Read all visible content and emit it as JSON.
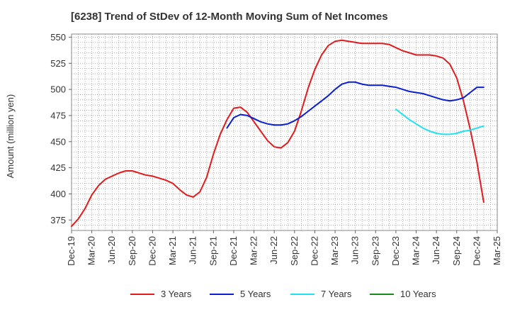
{
  "chart_data": {
    "type": "line",
    "title": "[6238]  Trend of StDev of 12-Month Moving Sum of Net Incomes",
    "ylabel": "Amount (million yen)",
    "xlabel": "",
    "ylim": [
      365,
      553
    ],
    "yticks": [
      375,
      400,
      425,
      450,
      475,
      500,
      525,
      550
    ],
    "x_tick_labels": [
      "Dec-19",
      "Mar-20",
      "Jun-20",
      "Sep-20",
      "Dec-20",
      "Mar-21",
      "Jun-21",
      "Sep-21",
      "Dec-21",
      "Mar-22",
      "Jun-22",
      "Sep-22",
      "Dec-22",
      "Mar-23",
      "Jun-23",
      "Sep-23",
      "Dec-23",
      "Mar-24",
      "Jun-24",
      "Sep-24",
      "Dec-24",
      "Mar-25"
    ],
    "x_range": [
      "2019-12",
      "2025-03"
    ],
    "grid": true,
    "legend_position": "bottom",
    "series": [
      {
        "name": "3 Years",
        "color": "#e31a1c",
        "points": [
          [
            "2019-12",
            369
          ],
          [
            "2020-01",
            376
          ],
          [
            "2020-02",
            386
          ],
          [
            "2020-03",
            399
          ],
          [
            "2020-04",
            408
          ],
          [
            "2020-05",
            414
          ],
          [
            "2020-06",
            417
          ],
          [
            "2020-07",
            420
          ],
          [
            "2020-08",
            422
          ],
          [
            "2020-09",
            422
          ],
          [
            "2020-10",
            420
          ],
          [
            "2020-11",
            418
          ],
          [
            "2020-12",
            417
          ],
          [
            "2021-01",
            415
          ],
          [
            "2021-02",
            413
          ],
          [
            "2021-03",
            410
          ],
          [
            "2021-04",
            404
          ],
          [
            "2021-05",
            399
          ],
          [
            "2021-06",
            397
          ],
          [
            "2021-07",
            402
          ],
          [
            "2021-08",
            416
          ],
          [
            "2021-09",
            438
          ],
          [
            "2021-10",
            457
          ],
          [
            "2021-11",
            471
          ],
          [
            "2021-12",
            482
          ],
          [
            "2022-01",
            483
          ],
          [
            "2022-02",
            478
          ],
          [
            "2022-03",
            469
          ],
          [
            "2022-04",
            460
          ],
          [
            "2022-05",
            451
          ],
          [
            "2022-06",
            445
          ],
          [
            "2022-07",
            444
          ],
          [
            "2022-08",
            449
          ],
          [
            "2022-09",
            460
          ],
          [
            "2022-10",
            479
          ],
          [
            "2022-11",
            501
          ],
          [
            "2022-12",
            519
          ],
          [
            "2023-01",
            533
          ],
          [
            "2023-02",
            542
          ],
          [
            "2023-03",
            546
          ],
          [
            "2023-04",
            547
          ],
          [
            "2023-05",
            546
          ],
          [
            "2023-06",
            545
          ],
          [
            "2023-07",
            544
          ],
          [
            "2023-08",
            544
          ],
          [
            "2023-09",
            544
          ],
          [
            "2023-10",
            544
          ],
          [
            "2023-11",
            543
          ],
          [
            "2023-12",
            540
          ],
          [
            "2024-01",
            537
          ],
          [
            "2024-02",
            535
          ],
          [
            "2024-03",
            533
          ],
          [
            "2024-04",
            533
          ],
          [
            "2024-05",
            533
          ],
          [
            "2024-06",
            532
          ],
          [
            "2024-07",
            530
          ],
          [
            "2024-08",
            524
          ],
          [
            "2024-09",
            511
          ],
          [
            "2024-10",
            489
          ],
          [
            "2024-11",
            462
          ],
          [
            "2024-12",
            430
          ],
          [
            "2025-01",
            392
          ]
        ]
      },
      {
        "name": "5 Years",
        "color": "#0a1fd0",
        "points": [
          [
            "2021-11",
            463
          ],
          [
            "2021-12",
            473
          ],
          [
            "2022-01",
            476
          ],
          [
            "2022-02",
            475
          ],
          [
            "2022-03",
            472
          ],
          [
            "2022-04",
            469
          ],
          [
            "2022-05",
            467
          ],
          [
            "2022-06",
            466
          ],
          [
            "2022-07",
            466
          ],
          [
            "2022-08",
            467
          ],
          [
            "2022-09",
            470
          ],
          [
            "2022-10",
            474
          ],
          [
            "2022-11",
            479
          ],
          [
            "2022-12",
            484
          ],
          [
            "2023-01",
            489
          ],
          [
            "2023-02",
            494
          ],
          [
            "2023-03",
            500
          ],
          [
            "2023-04",
            505
          ],
          [
            "2023-05",
            507
          ],
          [
            "2023-06",
            507
          ],
          [
            "2023-07",
            505
          ],
          [
            "2023-08",
            504
          ],
          [
            "2023-09",
            504
          ],
          [
            "2023-10",
            504
          ],
          [
            "2023-11",
            503
          ],
          [
            "2023-12",
            502
          ],
          [
            "2024-01",
            500
          ],
          [
            "2024-02",
            498
          ],
          [
            "2024-03",
            497
          ],
          [
            "2024-04",
            496
          ],
          [
            "2024-05",
            494
          ],
          [
            "2024-06",
            492
          ],
          [
            "2024-07",
            490
          ],
          [
            "2024-08",
            489
          ],
          [
            "2024-09",
            490
          ],
          [
            "2024-10",
            492
          ],
          [
            "2024-11",
            497
          ],
          [
            "2024-12",
            502
          ],
          [
            "2025-01",
            502
          ]
        ]
      },
      {
        "name": "7 Years",
        "color": "#22e0f0",
        "points": [
          [
            "2023-12",
            481
          ],
          [
            "2024-01",
            476
          ],
          [
            "2024-02",
            471
          ],
          [
            "2024-03",
            467
          ],
          [
            "2024-04",
            463
          ],
          [
            "2024-05",
            460
          ],
          [
            "2024-06",
            458
          ],
          [
            "2024-07",
            457
          ],
          [
            "2024-08",
            457
          ],
          [
            "2024-09",
            458
          ],
          [
            "2024-10",
            460
          ],
          [
            "2024-11",
            461
          ],
          [
            "2024-12",
            463
          ],
          [
            "2025-01",
            465
          ]
        ]
      },
      {
        "name": "10 Years",
        "color": "#1a8a1a",
        "points": []
      }
    ]
  }
}
